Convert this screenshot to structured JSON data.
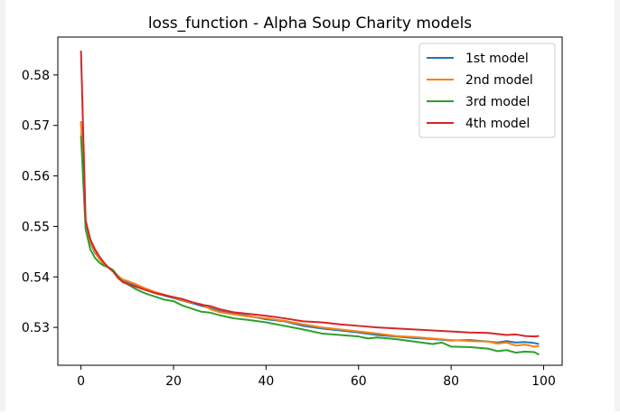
{
  "chart_data": {
    "type": "line",
    "title": "loss_function - Alpha Soup Charity models",
    "xlabel": "",
    "ylabel": "",
    "xlim": [
      -5,
      104
    ],
    "ylim": [
      0.5225,
      0.5875
    ],
    "xticks": [
      0,
      20,
      40,
      60,
      80,
      100
    ],
    "yticks": [
      0.53,
      0.54,
      0.55,
      0.56,
      0.57,
      0.58
    ],
    "grid": false,
    "legend_position": "top-right",
    "series": [
      {
        "name": "1st model",
        "color": "#1f77b4",
        "x": [
          0,
          1,
          2,
          3,
          4,
          5,
          6,
          7,
          8,
          9,
          10,
          12,
          14,
          16,
          18,
          20,
          22,
          24,
          26,
          28,
          30,
          33,
          36,
          40,
          44,
          48,
          52,
          56,
          60,
          64,
          68,
          72,
          76,
          80,
          84,
          88,
          90,
          92,
          94,
          96,
          98,
          99
        ],
        "y": [
          0.5708,
          0.5505,
          0.5468,
          0.5448,
          0.5436,
          0.5424,
          0.5418,
          0.5412,
          0.5402,
          0.5394,
          0.539,
          0.5383,
          0.5375,
          0.5368,
          0.5363,
          0.5358,
          0.5353,
          0.5348,
          0.5343,
          0.5338,
          0.5332,
          0.5327,
          0.5323,
          0.5316,
          0.5312,
          0.5303,
          0.5298,
          0.5294,
          0.529,
          0.5285,
          0.5282,
          0.5279,
          0.5277,
          0.5274,
          0.5275,
          0.5272,
          0.527,
          0.5273,
          0.527,
          0.5271,
          0.5269,
          0.5267
        ]
      },
      {
        "name": "2nd model",
        "color": "#ff7f0e",
        "x": [
          0,
          1,
          2,
          3,
          4,
          5,
          6,
          7,
          8,
          9,
          10,
          12,
          14,
          16,
          18,
          20,
          22,
          24,
          26,
          28,
          30,
          33,
          36,
          40,
          44,
          48,
          52,
          56,
          60,
          64,
          68,
          72,
          76,
          80,
          84,
          88,
          90,
          92,
          94,
          96,
          98,
          99
        ],
        "y": [
          0.5707,
          0.5508,
          0.547,
          0.545,
          0.5435,
          0.5425,
          0.5418,
          0.5411,
          0.5402,
          0.5395,
          0.5392,
          0.5385,
          0.5377,
          0.537,
          0.5365,
          0.5359,
          0.5354,
          0.5349,
          0.5346,
          0.5336,
          0.533,
          0.5326,
          0.5322,
          0.5318,
          0.5313,
          0.5306,
          0.53,
          0.5296,
          0.5292,
          0.5288,
          0.5283,
          0.5281,
          0.5278,
          0.5275,
          0.5273,
          0.5272,
          0.5268,
          0.527,
          0.5264,
          0.5266,
          0.5262,
          0.5263
        ]
      },
      {
        "name": "3rd model",
        "color": "#2ca02c",
        "x": [
          0,
          1,
          2,
          3,
          4,
          5,
          6,
          7,
          8,
          9,
          10,
          12,
          14,
          16,
          18,
          20,
          22,
          24,
          26,
          28,
          30,
          33,
          36,
          40,
          44,
          48,
          52,
          56,
          60,
          62,
          64,
          68,
          72,
          76,
          78,
          80,
          84,
          88,
          90,
          92,
          94,
          96,
          98,
          99
        ],
        "y": [
          0.568,
          0.5495,
          0.5455,
          0.5438,
          0.5428,
          0.5422,
          0.5419,
          0.5413,
          0.54,
          0.539,
          0.5386,
          0.5375,
          0.5367,
          0.5361,
          0.5355,
          0.5352,
          0.5343,
          0.5337,
          0.5331,
          0.5329,
          0.5324,
          0.5318,
          0.5315,
          0.531,
          0.5303,
          0.5296,
          0.5288,
          0.5285,
          0.5282,
          0.5278,
          0.528,
          0.5277,
          0.5272,
          0.5267,
          0.527,
          0.5262,
          0.5261,
          0.5258,
          0.5253,
          0.5255,
          0.525,
          0.5252,
          0.5251,
          0.5246
        ]
      },
      {
        "name": "4th model",
        "color": "#d62728",
        "x": [
          0,
          1,
          2,
          3,
          4,
          5,
          6,
          7,
          8,
          9,
          10,
          12,
          14,
          16,
          18,
          20,
          22,
          24,
          26,
          28,
          30,
          33,
          36,
          40,
          44,
          48,
          52,
          56,
          60,
          64,
          68,
          72,
          76,
          80,
          84,
          88,
          90,
          92,
          94,
          96,
          98,
          99
        ],
        "y": [
          0.5848,
          0.5512,
          0.5475,
          0.5455,
          0.544,
          0.5428,
          0.5418,
          0.541,
          0.5398,
          0.539,
          0.5386,
          0.538,
          0.5374,
          0.5368,
          0.5364,
          0.536,
          0.5356,
          0.535,
          0.5345,
          0.5342,
          0.5336,
          0.533,
          0.5327,
          0.5323,
          0.5318,
          0.5312,
          0.531,
          0.5306,
          0.5303,
          0.53,
          0.5298,
          0.5296,
          0.5294,
          0.5292,
          0.529,
          0.5289,
          0.5287,
          0.5285,
          0.5286,
          0.5283,
          0.5282,
          0.5283
        ]
      }
    ]
  }
}
